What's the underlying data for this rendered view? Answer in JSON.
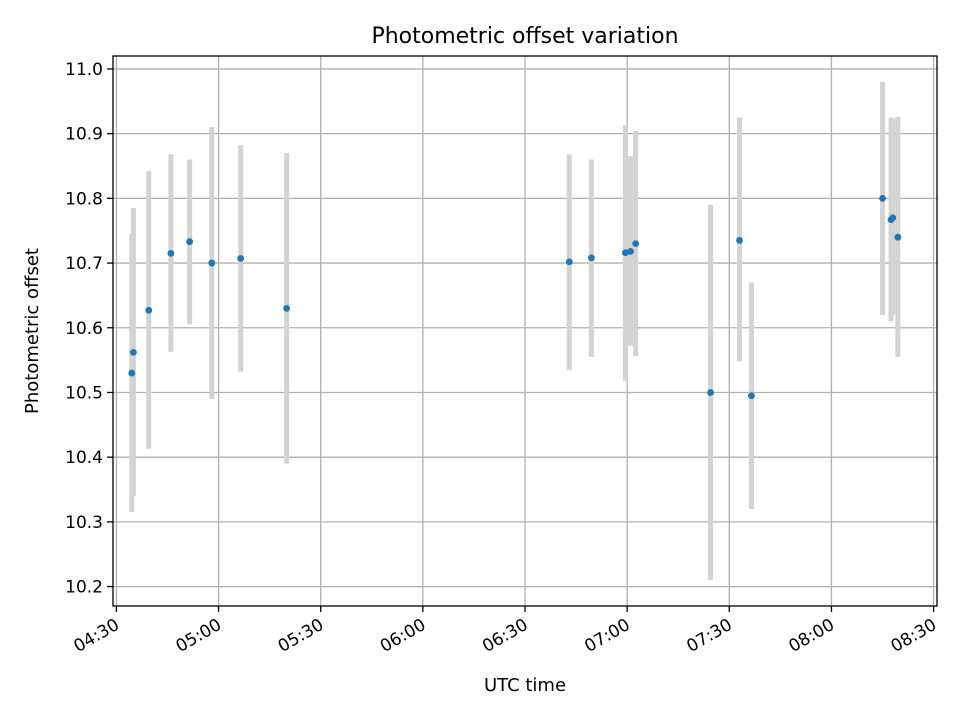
{
  "chart_data": {
    "type": "scatter",
    "title": "Photometric offset variation",
    "xlabel": "UTC time",
    "ylabel": "Photometric offset",
    "x_tick_labels": [
      "04:30",
      "05:00",
      "05:30",
      "06:00",
      "06:30",
      "07:00",
      "07:30",
      "08:00",
      "08:30"
    ],
    "x_ticks": [
      "04:30",
      "05:00",
      "05:30",
      "06:00",
      "06:30",
      "07:00",
      "07:30",
      "08:00",
      "08:30"
    ],
    "xlim": [
      "04:29",
      "08:31"
    ],
    "y_tick_labels": [
      "10.2",
      "10.3",
      "10.4",
      "10.5",
      "10.6",
      "10.7",
      "10.8",
      "10.9",
      "11.0"
    ],
    "y_ticks": [
      10.2,
      10.3,
      10.4,
      10.5,
      10.6,
      10.7,
      10.8,
      10.9,
      11.0
    ],
    "ylim": [
      10.17,
      11.02
    ],
    "grid": true,
    "point_color": "#1f77b4",
    "errorbar_color": "#d3d3d3",
    "points": [
      {
        "x": "04:34:30",
        "y": 10.53,
        "ylow": 10.315,
        "yhigh": 10.745
      },
      {
        "x": "04:35:00",
        "y": 10.562,
        "ylow": 10.34,
        "yhigh": 10.785
      },
      {
        "x": "04:39:30",
        "y": 10.627,
        "ylow": 10.413,
        "yhigh": 10.842
      },
      {
        "x": "04:46:00",
        "y": 10.715,
        "ylow": 10.563,
        "yhigh": 10.868
      },
      {
        "x": "04:51:30",
        "y": 10.733,
        "ylow": 10.605,
        "yhigh": 10.86
      },
      {
        "x": "04:58:00",
        "y": 10.7,
        "ylow": 10.49,
        "yhigh": 10.91
      },
      {
        "x": "05:06:30",
        "y": 10.707,
        "ylow": 10.532,
        "yhigh": 10.882
      },
      {
        "x": "05:20:00",
        "y": 10.63,
        "ylow": 10.39,
        "yhigh": 10.87
      },
      {
        "x": "06:43:00",
        "y": 10.702,
        "ylow": 10.535,
        "yhigh": 10.868
      },
      {
        "x": "06:49:30",
        "y": 10.708,
        "ylow": 10.555,
        "yhigh": 10.86
      },
      {
        "x": "06:59:30",
        "y": 10.716,
        "ylow": 10.518,
        "yhigh": 10.913
      },
      {
        "x": "07:01:00",
        "y": 10.718,
        "ylow": 10.572,
        "yhigh": 10.865
      },
      {
        "x": "07:02:30",
        "y": 10.73,
        "ylow": 10.556,
        "yhigh": 10.904
      },
      {
        "x": "07:24:30",
        "y": 10.5,
        "ylow": 10.21,
        "yhigh": 10.79
      },
      {
        "x": "07:33:00",
        "y": 10.735,
        "ylow": 10.548,
        "yhigh": 10.925
      },
      {
        "x": "07:36:30",
        "y": 10.495,
        "ylow": 10.32,
        "yhigh": 10.67
      },
      {
        "x": "08:15:00",
        "y": 10.8,
        "ylow": 10.62,
        "yhigh": 10.98
      },
      {
        "x": "08:17:30",
        "y": 10.767,
        "ylow": 10.61,
        "yhigh": 10.925
      },
      {
        "x": "08:18:00",
        "y": 10.77,
        "ylow": 10.62,
        "yhigh": 10.923
      },
      {
        "x": "08:19:30",
        "y": 10.74,
        "ylow": 10.555,
        "yhigh": 10.926
      }
    ]
  }
}
